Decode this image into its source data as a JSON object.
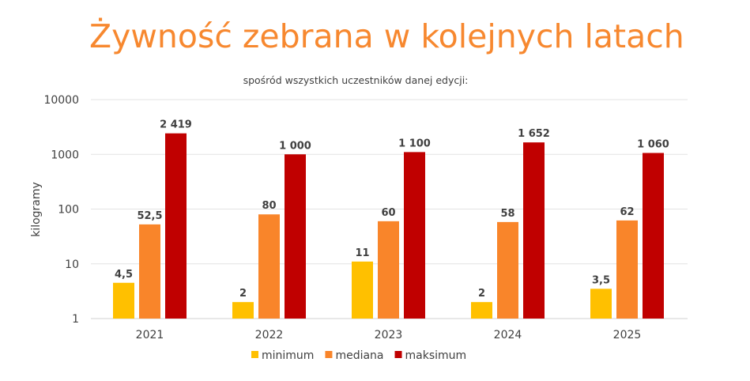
{
  "chart_data": {
    "type": "bar",
    "title": "Żywność zebrana w kolejnych latach",
    "subtitle": "spośród wszystkich uczestników danej edycji:",
    "xlabel": "",
    "ylabel": "kilogramy",
    "yscale": "log",
    "ylim": [
      1,
      10000
    ],
    "yticks": [
      "1",
      "10",
      "100",
      "1000",
      "10000"
    ],
    "grid": true,
    "legend_position": "bottom",
    "categories": [
      "2021",
      "2022",
      "2023",
      "2024",
      "2025"
    ],
    "series": [
      {
        "name": "minimum",
        "color": "#FFC000",
        "values": [
          4.5,
          2,
          11,
          2,
          3.5
        ],
        "labels": [
          "4,5",
          "2",
          "11",
          "2",
          "3,5"
        ]
      },
      {
        "name": "mediana",
        "color": "#F9852A",
        "values": [
          52.5,
          80,
          60,
          58,
          62
        ],
        "labels": [
          "52,5",
          "80",
          "60",
          "58",
          "62"
        ]
      },
      {
        "name": "maksimum",
        "color": "#C00000",
        "values": [
          2419,
          1000,
          1100,
          1652,
          1060
        ],
        "labels": [
          "2 419",
          "1 000",
          "1 100",
          "1 652",
          "1 060"
        ]
      }
    ]
  }
}
